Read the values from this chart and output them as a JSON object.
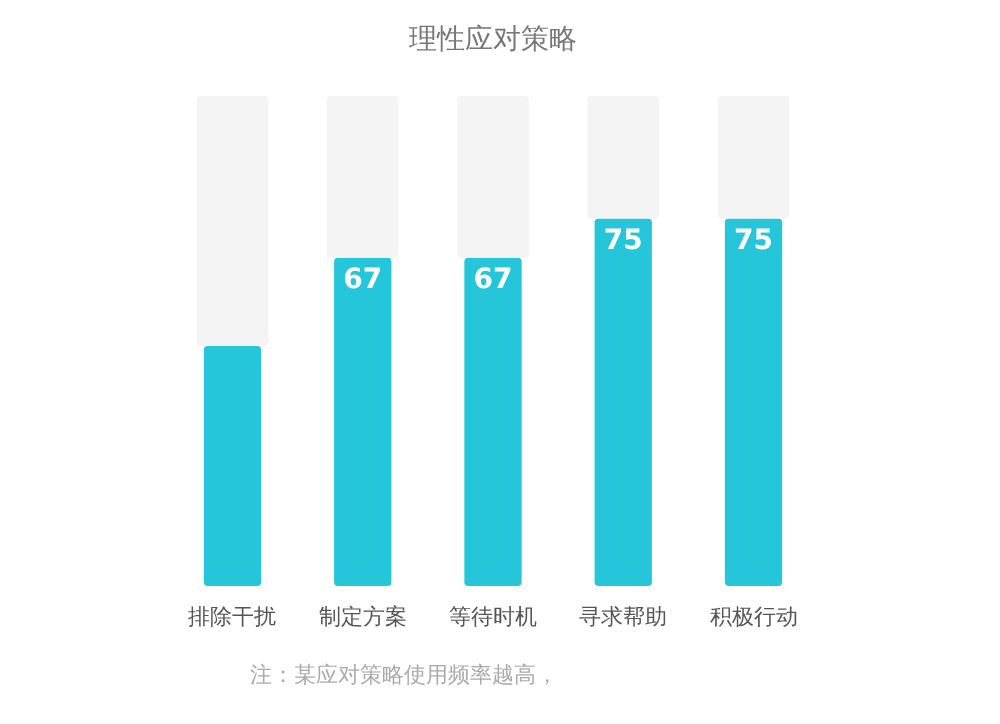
{
  "chart_data": {
    "type": "bar",
    "title": "理性应对策略",
    "categories": [
      "排除干扰",
      "制定方案",
      "等待时机",
      "寻求帮助",
      "积极行动"
    ],
    "stacked": true,
    "series": [
      {
        "color": "#26c6da",
        "values": [
          49,
          67,
          67,
          75,
          75
        ],
        "value_labels": [
          null,
          "67",
          "67",
          "75",
          "75"
        ]
      },
      {
        "color": "#f4f4f4",
        "values": [
          51,
          33,
          33,
          25,
          25
        ]
      }
    ],
    "ylim": [
      0,
      100
    ],
    "tick_labels": "x",
    "annotations": [
      "注：某应对策略使用频率越高，"
    ]
  }
}
